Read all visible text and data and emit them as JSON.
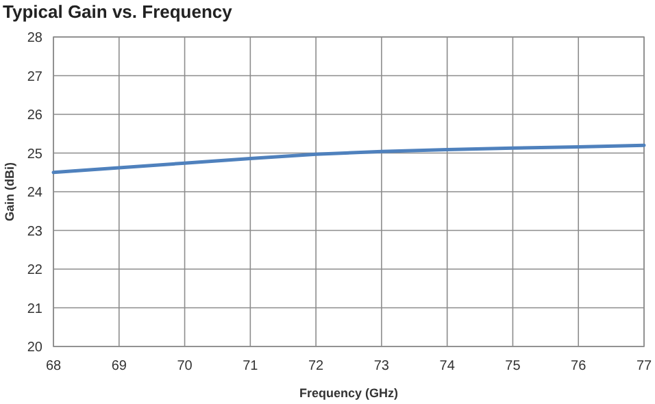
{
  "chart_data": {
    "type": "line",
    "title": "Typical Gain vs. Frequency",
    "xlabel": "Frequency (GHz)",
    "ylabel": "Gain (dBi)",
    "x": [
      68,
      69,
      70,
      71,
      72,
      73,
      74,
      75,
      76,
      77
    ],
    "series": [
      {
        "color": "#4f81bd",
        "values": [
          24.5,
          24.62,
          24.74,
          24.86,
          24.97,
          25.04,
          25.09,
          25.13,
          25.16,
          25.2
        ]
      }
    ],
    "xlim": [
      68,
      77
    ],
    "xticks": [
      68,
      69,
      70,
      71,
      72,
      73,
      74,
      75,
      76,
      77
    ],
    "ylim": [
      20,
      28
    ],
    "yticks": [
      20,
      21,
      22,
      23,
      24,
      25,
      26,
      27,
      28
    ],
    "grid": true,
    "marker": "none",
    "line_style": "solid"
  }
}
